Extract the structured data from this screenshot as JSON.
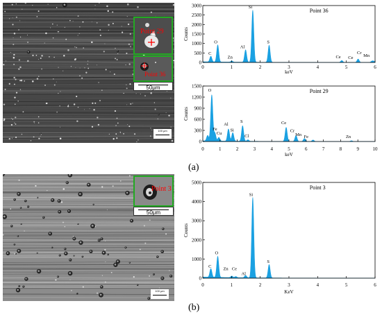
{
  "panel_a": {
    "label": "(a)",
    "inset_top_label": "Point 29",
    "inset_bottom_label": "Point 36",
    "scale_inset": "50μm",
    "scale_main": "100 μm"
  },
  "panel_b": {
    "label": "(b)",
    "inset_label": "Point 3",
    "scale_inset": "50μm",
    "scale_main": "100 μm"
  },
  "colors": {
    "spectrum": "#1ba1e2",
    "inset_border": "#22aa22",
    "marker": "#ff0000"
  },
  "chart_data": [
    {
      "type": "area",
      "title": "Point 36",
      "xlabel": "keV",
      "ylabel": "Counts",
      "xlim": [
        0,
        6
      ],
      "ylim": [
        0,
        3000
      ],
      "xticks": [
        0,
        1,
        2,
        3,
        4,
        5,
        6
      ],
      "yticks": [
        0,
        500,
        1000,
        1500,
        2000,
        2500,
        3000
      ],
      "peaks": [
        {
          "element": "C",
          "x": 0.28,
          "y": 300
        },
        {
          "element": "O",
          "x": 0.52,
          "y": 900
        },
        {
          "element": "Zn",
          "x": 1.01,
          "y": 60
        },
        {
          "element": "Al",
          "x": 1.49,
          "y": 650
        },
        {
          "element": "Si",
          "x": 1.74,
          "y": 2750
        },
        {
          "element": "S",
          "x": 2.31,
          "y": 900
        },
        {
          "element": "Ce",
          "x": 4.84,
          "y": 100
        },
        {
          "element": "Cr",
          "x": 5.41,
          "y": 180
        },
        {
          "element": "Cr",
          "x": 5.95,
          "y": 60
        },
        {
          "element": "Mn",
          "x": 5.89,
          "y": 60
        }
      ],
      "peak_labels": [
        {
          "text": "C",
          "x": 0.25,
          "y": 400
        },
        {
          "text": "O",
          "x": 0.45,
          "y": 1000
        },
        {
          "text": "Zn",
          "x": 0.95,
          "y": 200
        },
        {
          "text": "Al",
          "x": 1.38,
          "y": 750
        },
        {
          "text": "Si",
          "x": 1.66,
          "y": 2850
        },
        {
          "text": "S",
          "x": 2.28,
          "y": 1000
        },
        {
          "text": "Ce",
          "x": 4.72,
          "y": 220
        },
        {
          "text": "Ce",
          "x": 5.15,
          "y": 180
        },
        {
          "text": "Cr",
          "x": 5.45,
          "y": 430
        },
        {
          "text": "Mn",
          "x": 5.7,
          "y": 300
        }
      ]
    },
    {
      "type": "area",
      "title": "Point 29",
      "xlabel": "keV",
      "ylabel": "Counts",
      "xlim": [
        0,
        10
      ],
      "ylim": [
        0,
        1500
      ],
      "xticks": [
        0,
        1,
        2,
        3,
        4,
        5,
        6,
        7,
        8,
        9,
        10
      ],
      "yticks": [
        0,
        300,
        600,
        900,
        1200,
        1500
      ],
      "peaks": [
        {
          "element": "C",
          "x": 0.28,
          "y": 150
        },
        {
          "element": "O",
          "x": 0.52,
          "y": 1250
        },
        {
          "element": "Fe",
          "x": 0.7,
          "y": 220
        },
        {
          "element": "Cu",
          "x": 0.93,
          "y": 100
        },
        {
          "element": "Al",
          "x": 1.49,
          "y": 330
        },
        {
          "element": "Si",
          "x": 1.74,
          "y": 230
        },
        {
          "element": "S",
          "x": 2.31,
          "y": 420
        },
        {
          "element": "Cl",
          "x": 2.62,
          "y": 40
        },
        {
          "element": "Ce",
          "x": 4.84,
          "y": 380
        },
        {
          "element": "Cr",
          "x": 5.41,
          "y": 160
        },
        {
          "element": "Mn",
          "x": 5.9,
          "y": 80
        },
        {
          "element": "Fe",
          "x": 6.4,
          "y": 40
        },
        {
          "element": "Zn",
          "x": 8.63,
          "y": 20
        }
      ],
      "peak_labels": [
        {
          "text": "O",
          "x": 0.4,
          "y": 1350
        },
        {
          "text": "Fe",
          "x": 0.7,
          "y": 300
        },
        {
          "text": "Cu",
          "x": 0.95,
          "y": 190
        },
        {
          "text": "Al",
          "x": 1.35,
          "y": 430
        },
        {
          "text": "Si",
          "x": 1.7,
          "y": 270
        },
        {
          "text": "S",
          "x": 2.25,
          "y": 510
        },
        {
          "text": "Cl",
          "x": 2.55,
          "y": 110
        },
        {
          "text": "Ce",
          "x": 4.7,
          "y": 470
        },
        {
          "text": "Cr",
          "x": 5.2,
          "y": 250
        },
        {
          "text": "Mn",
          "x": 5.55,
          "y": 150
        },
        {
          "text": "Fe",
          "x": 6.0,
          "y": 90
        },
        {
          "text": "Zn",
          "x": 8.45,
          "y": 90
        }
      ]
    },
    {
      "type": "area",
      "title": "Point 3",
      "xlabel": "KeV",
      "ylabel": "Counts",
      "xlim": [
        0,
        6
      ],
      "ylim": [
        0,
        5000
      ],
      "xticks": [
        0,
        1,
        2,
        3,
        4,
        5,
        6
      ],
      "yticks": [
        0,
        1000,
        2000,
        3000,
        4000,
        5000
      ],
      "peaks": [
        {
          "element": "C",
          "x": 0.28,
          "y": 450
        },
        {
          "element": "O",
          "x": 0.52,
          "y": 1100
        },
        {
          "element": "Zn",
          "x": 1.01,
          "y": 80
        },
        {
          "element": "Ce",
          "x": 1.15,
          "y": 60
        },
        {
          "element": "Al",
          "x": 1.49,
          "y": 120
        },
        {
          "element": "Si",
          "x": 1.74,
          "y": 4200
        },
        {
          "element": "S",
          "x": 2.31,
          "y": 700
        }
      ],
      "peak_labels": [
        {
          "text": "C",
          "x": 0.25,
          "y": 550
        },
        {
          "text": "O",
          "x": 0.48,
          "y": 1250
        },
        {
          "text": "Zn",
          "x": 0.8,
          "y": 420
        },
        {
          "text": "Ce",
          "x": 1.1,
          "y": 420
        },
        {
          "text": "Al",
          "x": 1.42,
          "y": 170
        },
        {
          "text": "Si",
          "x": 1.68,
          "y": 4300
        },
        {
          "text": "S",
          "x": 2.28,
          "y": 800
        }
      ]
    }
  ]
}
